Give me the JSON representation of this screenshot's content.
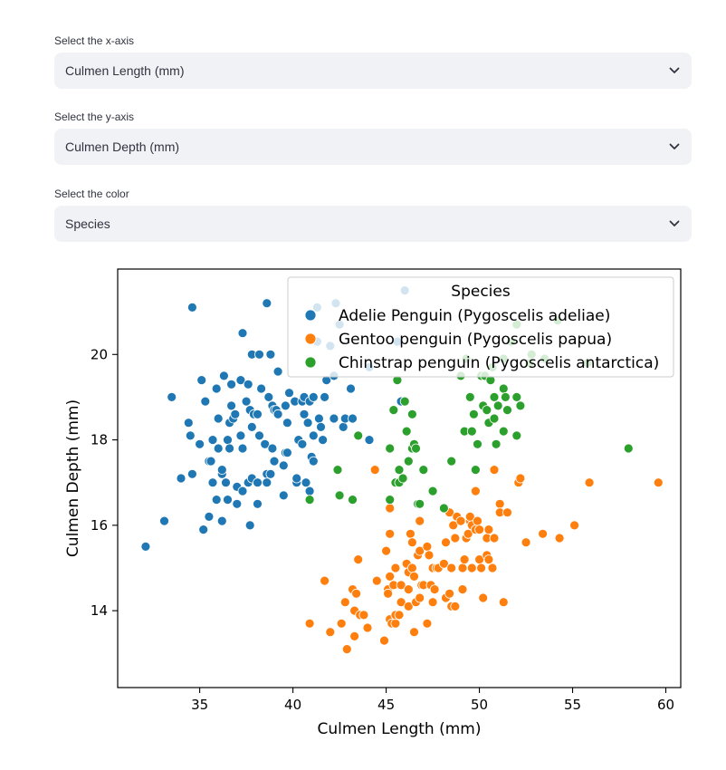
{
  "controls": [
    {
      "label": "Select the x-axis",
      "value": "Culmen Length (mm)",
      "icon": "chevron-down-icon"
    },
    {
      "label": "Select the y-axis",
      "value": "Culmen Depth (mm)",
      "icon": "chevron-down-icon"
    },
    {
      "label": "Select the color",
      "value": "Species",
      "icon": "chevron-down-icon"
    }
  ],
  "chart_data": {
    "type": "scatter",
    "xlabel": "Culmen Length (mm)",
    "ylabel": "Culmen Depth (mm)",
    "xlim": [
      30.6,
      60.8
    ],
    "ylim": [
      12.2,
      22.0
    ],
    "xticks": [
      35,
      40,
      45,
      50,
      55,
      60
    ],
    "yticks": [
      14,
      16,
      18,
      20
    ],
    "grid": false,
    "legend": {
      "title": "Species",
      "placement": "top-right"
    },
    "series": [
      {
        "name": "Adelie Penguin (Pygoscelis adeliae)",
        "color": "#1f77b4",
        "points": [
          [
            32.1,
            15.5
          ],
          [
            33.1,
            16.1
          ],
          [
            33.5,
            19.0
          ],
          [
            34.0,
            17.1
          ],
          [
            34.4,
            18.4
          ],
          [
            34.5,
            18.1
          ],
          [
            34.6,
            21.1
          ],
          [
            34.6,
            17.2
          ],
          [
            35.0,
            17.9
          ],
          [
            35.1,
            19.4
          ],
          [
            35.2,
            15.9
          ],
          [
            35.3,
            18.9
          ],
          [
            35.5,
            16.2
          ],
          [
            35.5,
            17.5
          ],
          [
            35.6,
            17.5
          ],
          [
            35.7,
            18.0
          ],
          [
            35.7,
            17.0
          ],
          [
            35.9,
            16.6
          ],
          [
            35.9,
            19.2
          ],
          [
            36.0,
            18.5
          ],
          [
            36.0,
            17.8
          ],
          [
            36.2,
            17.2
          ],
          [
            36.2,
            16.1
          ],
          [
            36.2,
            17.3
          ],
          [
            36.3,
            19.5
          ],
          [
            36.4,
            17.0
          ],
          [
            36.5,
            18.0
          ],
          [
            36.5,
            16.6
          ],
          [
            36.6,
            17.8
          ],
          [
            36.6,
            18.4
          ],
          [
            36.7,
            19.3
          ],
          [
            36.7,
            18.8
          ],
          [
            36.8,
            18.5
          ],
          [
            36.9,
            18.6
          ],
          [
            37.0,
            16.9
          ],
          [
            37.0,
            16.5
          ],
          [
            37.2,
            18.1
          ],
          [
            37.2,
            19.4
          ],
          [
            37.3,
            20.5
          ],
          [
            37.3,
            17.8
          ],
          [
            37.3,
            16.8
          ],
          [
            37.5,
            18.9
          ],
          [
            37.6,
            17.0
          ],
          [
            37.6,
            19.3
          ],
          [
            37.7,
            18.7
          ],
          [
            37.7,
            16.0
          ],
          [
            37.8,
            18.3
          ],
          [
            37.8,
            20.0
          ],
          [
            37.8,
            17.1
          ],
          [
            37.9,
            18.6
          ],
          [
            38.1,
            18.6
          ],
          [
            38.1,
            17.0
          ],
          [
            38.1,
            16.5
          ],
          [
            38.2,
            18.1
          ],
          [
            38.2,
            20.0
          ],
          [
            38.3,
            19.2
          ],
          [
            38.5,
            17.9
          ],
          [
            38.6,
            21.2
          ],
          [
            38.6,
            17.2
          ],
          [
            38.6,
            17.0
          ],
          [
            38.7,
            19.0
          ],
          [
            38.8,
            17.2
          ],
          [
            38.8,
            20.0
          ],
          [
            38.9,
            18.8
          ],
          [
            38.9,
            17.8
          ],
          [
            39.0,
            17.5
          ],
          [
            39.0,
            18.7
          ],
          [
            39.1,
            18.7
          ],
          [
            39.2,
            19.6
          ],
          [
            39.2,
            18.6
          ],
          [
            39.5,
            17.4
          ],
          [
            39.5,
            16.7
          ],
          [
            39.6,
            17.7
          ],
          [
            39.6,
            18.8
          ],
          [
            39.7,
            18.4
          ],
          [
            39.7,
            17.7
          ],
          [
            39.8,
            19.1
          ],
          [
            40.1,
            18.9
          ],
          [
            40.2,
            17.0
          ],
          [
            40.2,
            17.1
          ],
          [
            40.3,
            18.0
          ],
          [
            40.5,
            18.9
          ],
          [
            40.5,
            17.9
          ],
          [
            40.6,
            18.6
          ],
          [
            40.6,
            19.0
          ],
          [
            40.7,
            17.0
          ],
          [
            40.8,
            18.4
          ],
          [
            40.9,
            16.8
          ],
          [
            40.9,
            18.9
          ],
          [
            41.0,
            17.6
          ],
          [
            41.1,
            18.1
          ],
          [
            41.1,
            19.0
          ],
          [
            41.1,
            17.5
          ],
          [
            41.3,
            21.1
          ],
          [
            41.3,
            20.3
          ],
          [
            41.4,
            18.5
          ],
          [
            41.5,
            18.3
          ],
          [
            41.6,
            18.0
          ],
          [
            41.7,
            19.0
          ],
          [
            41.8,
            19.4
          ],
          [
            42.0,
            20.2
          ],
          [
            42.2,
            18.5
          ],
          [
            42.2,
            19.5
          ],
          [
            42.3,
            21.2
          ],
          [
            42.5,
            20.7
          ],
          [
            42.7,
            18.3
          ],
          [
            42.8,
            18.5
          ],
          [
            43.1,
            19.2
          ],
          [
            43.2,
            18.5
          ],
          [
            44.1,
            19.7
          ],
          [
            44.1,
            18.0
          ],
          [
            45.6,
            20.3
          ],
          [
            45.8,
            18.9
          ],
          [
            46.0,
            21.5
          ]
        ]
      },
      {
        "name": "Gentoo penguin (Pygoscelis papua)",
        "color": "#ff7f0e",
        "points": [
          [
            40.9,
            13.7
          ],
          [
            41.7,
            14.7
          ],
          [
            42.0,
            13.5
          ],
          [
            42.6,
            13.7
          ],
          [
            42.8,
            14.2
          ],
          [
            42.9,
            13.1
          ],
          [
            43.2,
            14.5
          ],
          [
            43.3,
            13.4
          ],
          [
            43.3,
            14.0
          ],
          [
            43.4,
            14.4
          ],
          [
            43.5,
            15.2
          ],
          [
            43.6,
            13.9
          ],
          [
            43.8,
            13.9
          ],
          [
            44.0,
            13.6
          ],
          [
            44.4,
            17.3
          ],
          [
            44.5,
            14.7
          ],
          [
            44.9,
            13.3
          ],
          [
            45.0,
            15.4
          ],
          [
            45.1,
            14.5
          ],
          [
            45.1,
            14.4
          ],
          [
            45.2,
            16.4
          ],
          [
            45.2,
            15.8
          ],
          [
            45.2,
            13.8
          ],
          [
            45.2,
            14.8
          ],
          [
            45.3,
            13.7
          ],
          [
            45.4,
            14.6
          ],
          [
            45.5,
            13.7
          ],
          [
            45.5,
            15.0
          ],
          [
            45.5,
            13.9
          ],
          [
            45.7,
            13.9
          ],
          [
            45.8,
            14.6
          ],
          [
            45.8,
            14.2
          ],
          [
            46.1,
            15.1
          ],
          [
            46.2,
            14.9
          ],
          [
            46.2,
            14.5
          ],
          [
            46.2,
            14.1
          ],
          [
            46.3,
            15.8
          ],
          [
            46.4,
            15.0
          ],
          [
            46.4,
            15.6
          ],
          [
            46.5,
            13.5
          ],
          [
            46.5,
            14.8
          ],
          [
            46.6,
            14.2
          ],
          [
            46.7,
            15.3
          ],
          [
            46.8,
            16.1
          ],
          [
            46.8,
            14.3
          ],
          [
            46.8,
            15.4
          ],
          [
            46.9,
            14.6
          ],
          [
            47.0,
            14.6
          ],
          [
            47.2,
            13.7
          ],
          [
            47.2,
            15.5
          ],
          [
            47.3,
            15.3
          ],
          [
            47.4,
            14.6
          ],
          [
            47.5,
            14.2
          ],
          [
            47.5,
            15.0
          ],
          [
            47.6,
            14.5
          ],
          [
            47.7,
            15.0
          ],
          [
            47.8,
            15.0
          ],
          [
            48.1,
            15.1
          ],
          [
            48.2,
            14.3
          ],
          [
            48.2,
            15.6
          ],
          [
            48.4,
            14.4
          ],
          [
            48.4,
            16.3
          ],
          [
            48.5,
            14.1
          ],
          [
            48.5,
            15.0
          ],
          [
            48.6,
            16.0
          ],
          [
            48.7,
            14.1
          ],
          [
            48.7,
            15.7
          ],
          [
            48.8,
            16.2
          ],
          [
            49.0,
            16.1
          ],
          [
            49.1,
            14.5
          ],
          [
            49.1,
            15.0
          ],
          [
            49.2,
            15.2
          ],
          [
            49.3,
            15.7
          ],
          [
            49.4,
            15.8
          ],
          [
            49.5,
            16.1
          ],
          [
            49.5,
            16.2
          ],
          [
            49.6,
            15.0
          ],
          [
            49.6,
            16.0
          ],
          [
            49.8,
            15.9
          ],
          [
            49.8,
            16.8
          ],
          [
            49.9,
            16.1
          ],
          [
            50.0,
            15.2
          ],
          [
            50.0,
            15.9
          ],
          [
            50.1,
            15.0
          ],
          [
            50.2,
            14.3
          ],
          [
            50.4,
            15.3
          ],
          [
            50.4,
            15.7
          ],
          [
            50.5,
            15.9
          ],
          [
            50.5,
            15.2
          ],
          [
            50.7,
            15.0
          ],
          [
            50.8,
            17.3
          ],
          [
            50.8,
            15.7
          ],
          [
            51.1,
            16.5
          ],
          [
            51.1,
            16.3
          ],
          [
            51.3,
            14.2
          ],
          [
            51.5,
            16.3
          ],
          [
            52.1,
            17.0
          ],
          [
            52.2,
            17.1
          ],
          [
            52.5,
            15.6
          ],
          [
            53.4,
            15.8
          ],
          [
            54.3,
            15.7
          ],
          [
            55.1,
            16.0
          ],
          [
            55.9,
            17.0
          ],
          [
            59.6,
            17.0
          ]
        ]
      },
      {
        "name": "Chinstrap penguin (Pygoscelis antarctica)",
        "color": "#2ca02c",
        "points": [
          [
            40.9,
            16.6
          ],
          [
            42.4,
            17.3
          ],
          [
            42.5,
            16.7
          ],
          [
            43.2,
            16.6
          ],
          [
            43.5,
            18.1
          ],
          [
            45.2,
            17.8
          ],
          [
            45.2,
            16.6
          ],
          [
            45.4,
            18.7
          ],
          [
            45.5,
            17.0
          ],
          [
            45.6,
            19.4
          ],
          [
            45.7,
            17.3
          ],
          [
            45.7,
            17.0
          ],
          [
            45.9,
            17.1
          ],
          [
            46.0,
            18.9
          ],
          [
            46.1,
            18.2
          ],
          [
            46.2,
            17.5
          ],
          [
            46.4,
            18.6
          ],
          [
            46.4,
            17.8
          ],
          [
            46.5,
            17.9
          ],
          [
            46.6,
            17.8
          ],
          [
            46.7,
            16.5
          ],
          [
            46.8,
            16.5
          ],
          [
            47.0,
            17.3
          ],
          [
            47.5,
            16.8
          ],
          [
            48.1,
            16.4
          ],
          [
            48.5,
            17.5
          ],
          [
            49.0,
            19.5
          ],
          [
            49.2,
            18.2
          ],
          [
            49.3,
            19.9
          ],
          [
            49.5,
            19.0
          ],
          [
            49.6,
            18.2
          ],
          [
            49.7,
            18.6
          ],
          [
            49.8,
            17.3
          ],
          [
            49.9,
            17.9
          ],
          [
            50.1,
            19.5
          ],
          [
            50.2,
            18.8
          ],
          [
            50.3,
            19.5
          ],
          [
            50.4,
            18.7
          ],
          [
            50.5,
            18.4
          ],
          [
            50.6,
            19.4
          ],
          [
            50.7,
            19.7
          ],
          [
            50.8,
            18.5
          ],
          [
            50.8,
            19.0
          ],
          [
            50.9,
            17.9
          ],
          [
            51.0,
            18.8
          ],
          [
            51.3,
            18.2
          ],
          [
            51.3,
            19.2
          ],
          [
            51.3,
            19.9
          ],
          [
            51.4,
            19.0
          ],
          [
            51.5,
            18.7
          ],
          [
            51.7,
            20.3
          ],
          [
            52.0,
            19.0
          ],
          [
            52.0,
            18.1
          ],
          [
            52.0,
            20.7
          ],
          [
            52.2,
            18.8
          ],
          [
            52.7,
            19.8
          ],
          [
            52.8,
            20.0
          ],
          [
            53.5,
            19.9
          ],
          [
            54.2,
            20.8
          ],
          [
            55.8,
            19.8
          ],
          [
            58.0,
            17.8
          ]
        ]
      }
    ]
  }
}
